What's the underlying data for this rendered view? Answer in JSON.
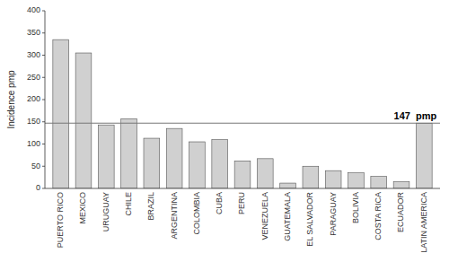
{
  "chart_data": {
    "type": "bar",
    "categories": [
      "PUERTO RICO",
      "MEXICO",
      "URUGUAY",
      "CHILE",
      "BRAZIL",
      "ARGENTINA",
      "COLOMBIA",
      "CUBA",
      "PERU",
      "VENEZUELA",
      "GUATEMALA",
      "EL SALVADOR",
      "PARAGUAY",
      "BOLIVIA",
      "COSTA RICA",
      "ECUADOR",
      "LATIN AMERICA"
    ],
    "values": [
      335,
      305,
      143,
      157,
      113,
      135,
      105,
      110,
      62,
      67,
      12,
      50,
      40,
      35,
      27,
      15,
      147
    ],
    "color": "#d0d0d0",
    "ylabel": "Incidence pmp",
    "ylim": [
      0,
      400
    ],
    "yticks": [
      0,
      50,
      100,
      150,
      200,
      250,
      300,
      350,
      400
    ],
    "grid": false,
    "reference_line": {
      "value": 147,
      "label": "147  pmp",
      "color": "#777777"
    }
  }
}
